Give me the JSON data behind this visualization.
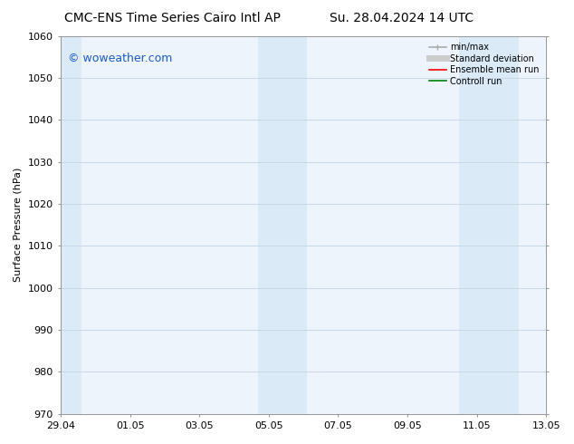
{
  "title_left": "CMC-ENS Time Series Cairo Intl AP",
  "title_right": "Su. 28.04.2024 14 UTC",
  "ylabel": "Surface Pressure (hPa)",
  "ylim": [
    970,
    1060
  ],
  "yticks": [
    970,
    980,
    990,
    1000,
    1010,
    1020,
    1030,
    1040,
    1050,
    1060
  ],
  "xlim": [
    0,
    14
  ],
  "xtick_labels": [
    "29.04",
    "01.05",
    "03.05",
    "05.05",
    "07.05",
    "09.05",
    "11.05",
    "13.05"
  ],
  "xtick_positions": [
    0,
    2,
    4,
    6,
    8,
    10,
    12,
    14
  ],
  "shaded_bands": [
    {
      "x_start": 0.0,
      "x_end": 0.6,
      "color": "#daeaf7"
    },
    {
      "x_start": 5.7,
      "x_end": 7.1,
      "color": "#daeaf7"
    },
    {
      "x_start": 11.5,
      "x_end": 13.2,
      "color": "#daeaf7"
    }
  ],
  "plot_bg_color": "#eef4fb",
  "background_color": "#ffffff",
  "grid_color": "#c8d8e8",
  "watermark_text": "© woweather.com",
  "watermark_color": "#1a5bce",
  "legend_items": [
    {
      "label": "min/max",
      "color": "#aaaaaa",
      "lw": 1.2
    },
    {
      "label": "Standard deviation",
      "color": "#cccccc",
      "lw": 5.0
    },
    {
      "label": "Ensemble mean run",
      "color": "#ff0000",
      "lw": 1.2
    },
    {
      "label": "Controll run",
      "color": "#008000",
      "lw": 1.2
    }
  ],
  "title_fontsize": 10,
  "ylabel_fontsize": 8,
  "tick_fontsize": 8,
  "legend_fontsize": 7,
  "watermark_fontsize": 9
}
